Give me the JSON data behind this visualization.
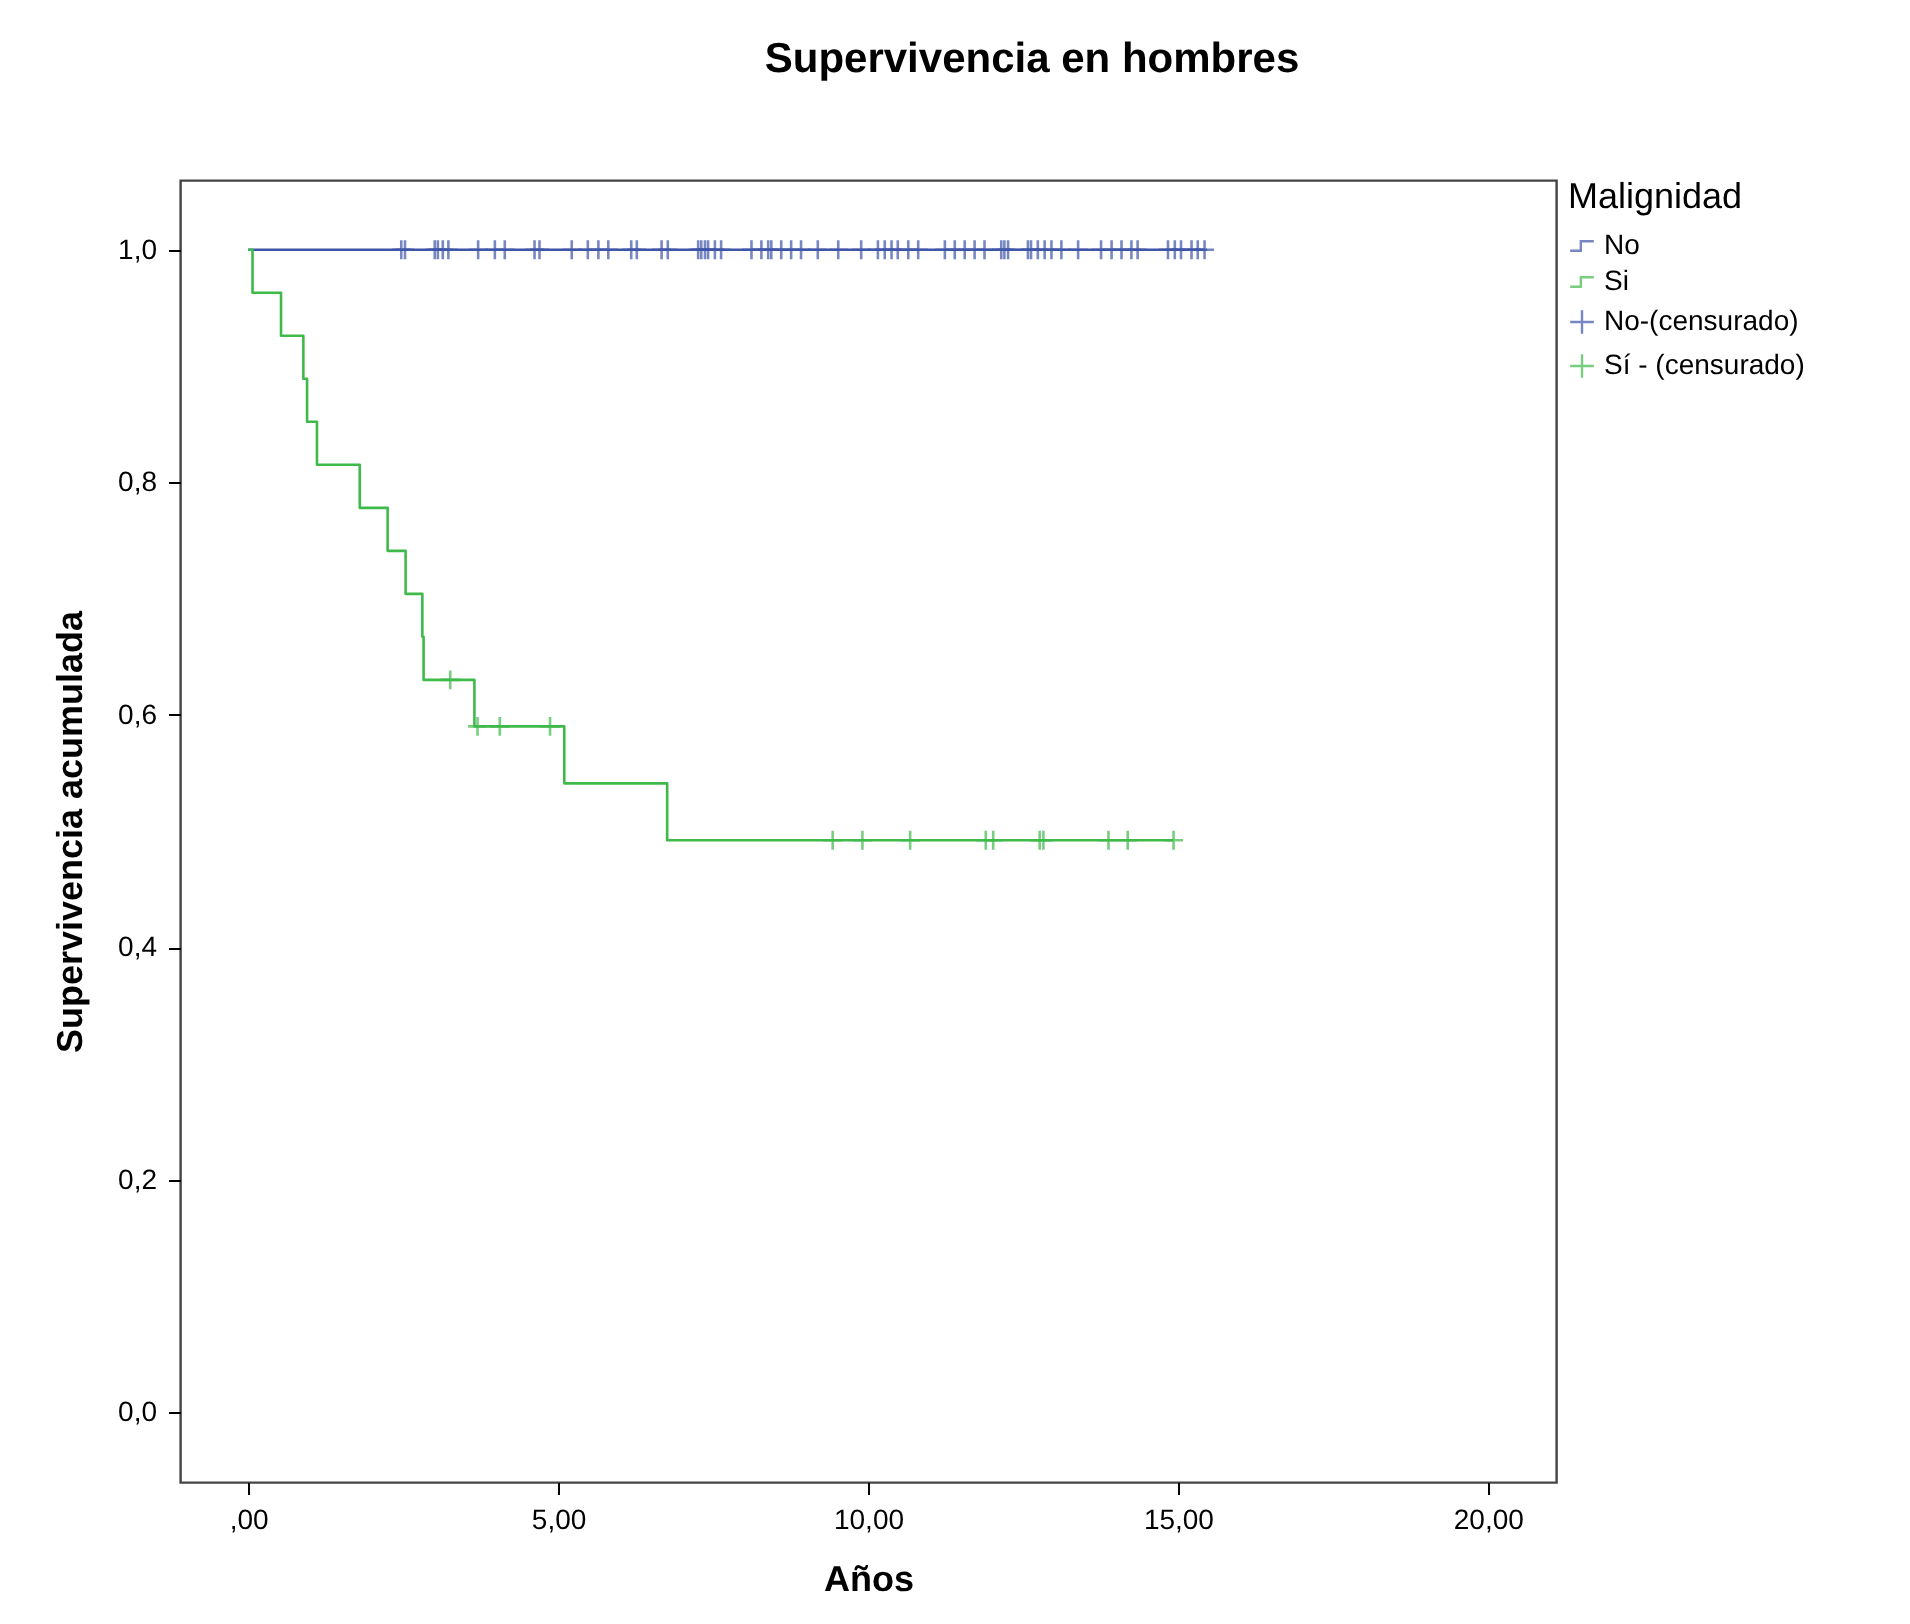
{
  "chart_data": {
    "type": "step",
    "title": "Supervivencia en hombres",
    "xlabel": "Años",
    "ylabel": "Supervivencia acumulada",
    "legend_title": "Malignidad",
    "legend": "right",
    "grid": false,
    "xlim": [
      -1.1,
      21.1
    ],
    "xticks": [
      {
        "value": 0,
        "label": ",00"
      },
      {
        "value": 5,
        "label": "5,00"
      },
      {
        "value": 10,
        "label": "10,00"
      },
      {
        "value": 15,
        "label": "15,00"
      },
      {
        "value": 20,
        "label": "20,00"
      }
    ],
    "ylim": [
      -0.06,
      1.06
    ],
    "yticks": [
      {
        "value": 0,
        "label": "0,0"
      },
      {
        "value": 0.2,
        "label": "0,2"
      },
      {
        "value": 0.4,
        "label": "0,4"
      },
      {
        "value": 0.6,
        "label": "0,6"
      },
      {
        "value": 0.8,
        "label": "0,8"
      },
      {
        "value": 1,
        "label": "1,0"
      }
    ],
    "series": [
      {
        "name": "No",
        "color": "#3e55a8",
        "x": [
          0,
          15.43
        ],
        "values": [
          1,
          1
        ]
      },
      {
        "name": "Si",
        "color": "#3fba4a",
        "x": [
          0,
          0.07,
          0.53,
          0.89,
          0.95,
          1.11,
          1.8,
          2.25,
          2.54,
          2.81,
          2.83,
          3.65,
          5.1,
          6.76,
          14.93
        ],
        "values": [
          1,
          0.963,
          0.926,
          0.889,
          0.852,
          0.815,
          0.778,
          0.741,
          0.704,
          0.667,
          0.63,
          0.59,
          0.541,
          0.492,
          0.492
        ]
      },
      {
        "name": "No-(censurado)",
        "type": "scatter",
        "marker": "cross",
        "color": "#3e55a8",
        "x": [
          2.47,
          2.53,
          3.01,
          3.06,
          3.14,
          3.23,
          3.71,
          3.98,
          4.14,
          4.62,
          4.7,
          5.22,
          5.48,
          5.65,
          5.81,
          6.18,
          6.27,
          6.67,
          6.77,
          7.26,
          7.31,
          7.37,
          7.42,
          7.53,
          7.63,
          8.12,
          8.28,
          8.39,
          8.44,
          8.6,
          8.76,
          8.92,
          9.19,
          9.52,
          9.89,
          10.16,
          10.27,
          10.38,
          10.48,
          10.65,
          10.81,
          11.24,
          11.4,
          11.56,
          11.72,
          11.88,
          12.15,
          12.2,
          12.26,
          12.58,
          12.63,
          12.74,
          12.85,
          12.96,
          13.12,
          13.39,
          13.76,
          13.93,
          14.09,
          14.25,
          14.35,
          14.84,
          14.95,
          15.05,
          15.22,
          15.32,
          15.43
        ],
        "values": [
          1,
          1,
          1,
          1,
          1,
          1,
          1,
          1,
          1,
          1,
          1,
          1,
          1,
          1,
          1,
          1,
          1,
          1,
          1,
          1,
          1,
          1,
          1,
          1,
          1,
          1,
          1,
          1,
          1,
          1,
          1,
          1,
          1,
          1,
          1,
          1,
          1,
          1,
          1,
          1,
          1,
          1,
          1,
          1,
          1,
          1,
          1,
          1,
          1,
          1,
          1,
          1,
          1,
          1,
          1,
          1,
          1,
          1,
          1,
          1,
          1,
          1,
          1,
          1,
          1,
          1,
          1
        ]
      },
      {
        "name": "Sí - (censurado)",
        "type": "scatter",
        "marker": "cross",
        "color": "#3fba4a",
        "x": [
          3.26,
          3.7,
          4.06,
          4.87,
          9.43,
          9.91,
          10.68,
          11.9,
          12.02,
          12.77,
          12.83,
          13.88,
          14.19,
          14.93
        ],
        "values": [
          0.63,
          0.59,
          0.59,
          0.59,
          0.492,
          0.492,
          0.492,
          0.492,
          0.492,
          0.492,
          0.492,
          0.492,
          0.492,
          0.492
        ]
      }
    ]
  }
}
